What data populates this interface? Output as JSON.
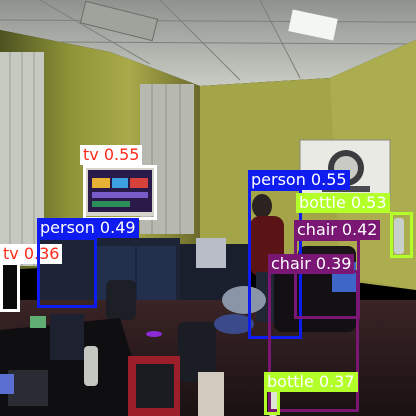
{
  "colors": {
    "wall": "#a9aa4a",
    "wall_shadow": "#6c6a2c",
    "ceiling": "#b9bcb5",
    "desk": "#1d2437",
    "floor": "#2a1c1e",
    "person": "#0f1cf0",
    "tv": "#ffffff",
    "chair": "#7a1674",
    "bottle": "#b2ff2a"
  },
  "detections": [
    {
      "id": "tv-1",
      "class": "tv",
      "score_text": "0.55",
      "label": "tv 0.55",
      "color": "#ffffff",
      "text_color": "#ff2a1a"
    },
    {
      "id": "tv-2",
      "class": "tv",
      "score_text": "0.36",
      "label": "tv 0.36",
      "color": "#ffffff",
      "text_color": "#ff2a1a"
    },
    {
      "id": "person-1",
      "class": "person",
      "score_text": "0.49",
      "label": "person 0.49",
      "color": "#0f1cf0",
      "text_color": "#ffffff"
    },
    {
      "id": "person-2",
      "class": "person",
      "score_text": "0.55",
      "label": "person 0.55",
      "color": "#0f1cf0",
      "text_color": "#ffffff"
    },
    {
      "id": "bottle-1",
      "class": "bottle",
      "score_text": "0.53",
      "label": "bottle 0.53",
      "color": "#b2ff2a",
      "text_color": "#ffffff"
    },
    {
      "id": "chair-1",
      "class": "chair",
      "score_text": "0.42",
      "label": "chair 0.42",
      "color": "#7a1674",
      "text_color": "#ffffff"
    },
    {
      "id": "chair-2",
      "class": "chair",
      "score_text": "0.39",
      "label": "chair 0.39",
      "color": "#7a1674",
      "text_color": "#ffffff"
    },
    {
      "id": "bottle-2",
      "class": "bottle",
      "score_text": "0.37",
      "label": "bottle 0.37",
      "color": "#b2ff2a",
      "text_color": "#ffffff"
    }
  ]
}
